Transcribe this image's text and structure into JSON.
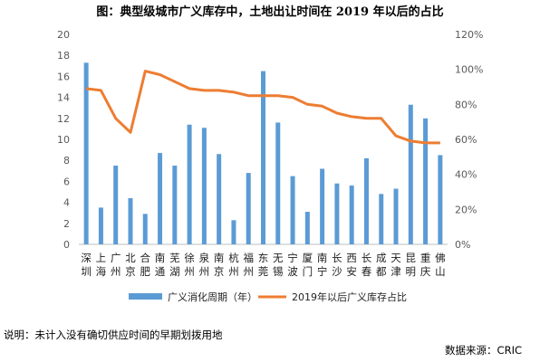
{
  "title": "图：典型级城市广义库存中，土地出让时间在 2019 年以后的占比",
  "note": "说明：未计入没有确切供应时间的早期划拨用地",
  "source": "数据来源：CRIC",
  "chart_data": {
    "type": "bar+line",
    "categories": [
      "深圳",
      "上海",
      "广州",
      "北京",
      "合肥",
      "南通",
      "芜湖",
      "徐州",
      "泉州",
      "南京",
      "杭州",
      "福州",
      "东莞",
      "无锡",
      "宁波",
      "厦门",
      "南宁",
      "长沙",
      "西安",
      "长春",
      "成都",
      "天津",
      "昆明",
      "重庆",
      "佛山"
    ],
    "series": [
      {
        "name": "广义消化周期（年）",
        "type": "bar",
        "axis": "left",
        "color": "#5B9BD5",
        "values": [
          17.3,
          3.5,
          7.5,
          4.4,
          2.9,
          8.7,
          7.5,
          11.4,
          11.1,
          8.6,
          2.3,
          6.8,
          16.5,
          11.6,
          6.5,
          3.1,
          7.2,
          5.8,
          5.6,
          8.2,
          4.8,
          5.3,
          13.3,
          12.0,
          8.5
        ]
      },
      {
        "name": "2019年以后广义库存占比",
        "type": "line",
        "axis": "right",
        "color": "#ED7D31",
        "values": [
          89,
          88,
          72,
          64,
          99,
          97,
          93,
          89,
          88,
          88,
          87,
          85,
          85,
          85,
          84,
          80,
          79,
          75,
          73,
          72,
          72,
          62,
          59,
          58,
          58
        ]
      }
    ],
    "y_left": {
      "min": 0,
      "max": 20,
      "step": 2,
      "ticks": [
        "0",
        "2",
        "4",
        "6",
        "8",
        "10",
        "12",
        "14",
        "16",
        "18",
        "20"
      ]
    },
    "y_right": {
      "min": 0,
      "max": 120,
      "step": 20,
      "ticks": [
        "0%",
        "20%",
        "40%",
        "60%",
        "80%",
        "100%",
        "120%"
      ]
    },
    "grid": false,
    "legend": "bottom"
  }
}
